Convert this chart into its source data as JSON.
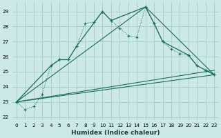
{
  "xlabel": "Humidex (Indice chaleur)",
  "bg_color": "#cce8e8",
  "grid_color": "#aacfcf",
  "line_color": "#1a6b5a",
  "xlim": [
    -0.5,
    23.5
  ],
  "ylim": [
    21.8,
    29.6
  ],
  "yticks": [
    22,
    23,
    24,
    25,
    26,
    27,
    28,
    29
  ],
  "xticks": [
    0,
    1,
    2,
    3,
    4,
    5,
    6,
    7,
    8,
    9,
    10,
    11,
    12,
    13,
    14,
    15,
    16,
    17,
    18,
    19,
    20,
    21,
    22,
    23
  ],
  "xlabel_fontsize": 6.5,
  "tick_fontsize": 5.2,
  "series_dotted_x": [
    0,
    1,
    2,
    3,
    4,
    5,
    6,
    7,
    8,
    9,
    10,
    11,
    12,
    13,
    14,
    15,
    16,
    17,
    18,
    19,
    20,
    21,
    22,
    23
  ],
  "series_dotted_y": [
    23.0,
    22.5,
    22.7,
    23.5,
    25.4,
    25.8,
    25.8,
    26.7,
    28.2,
    28.3,
    29.0,
    28.4,
    27.9,
    27.4,
    27.3,
    29.3,
    28.2,
    27.0,
    26.5,
    26.2,
    26.1,
    25.4,
    25.1,
    24.8
  ],
  "series_solid_x": [
    0,
    4,
    5,
    6,
    7,
    10,
    11,
    15,
    16,
    17,
    20,
    21,
    22,
    23
  ],
  "series_solid_y": [
    23.0,
    25.4,
    25.8,
    25.8,
    26.7,
    29.0,
    28.4,
    29.3,
    28.2,
    27.0,
    26.1,
    25.4,
    25.1,
    24.8
  ],
  "series_line1_x": [
    0,
    23
  ],
  "series_line1_y": [
    23.0,
    24.8
  ],
  "series_line2_x": [
    0,
    23
  ],
  "series_line2_y": [
    23.0,
    25.1
  ],
  "series_line3_x": [
    0,
    15,
    23
  ],
  "series_line3_y": [
    23.0,
    29.3,
    24.8
  ]
}
